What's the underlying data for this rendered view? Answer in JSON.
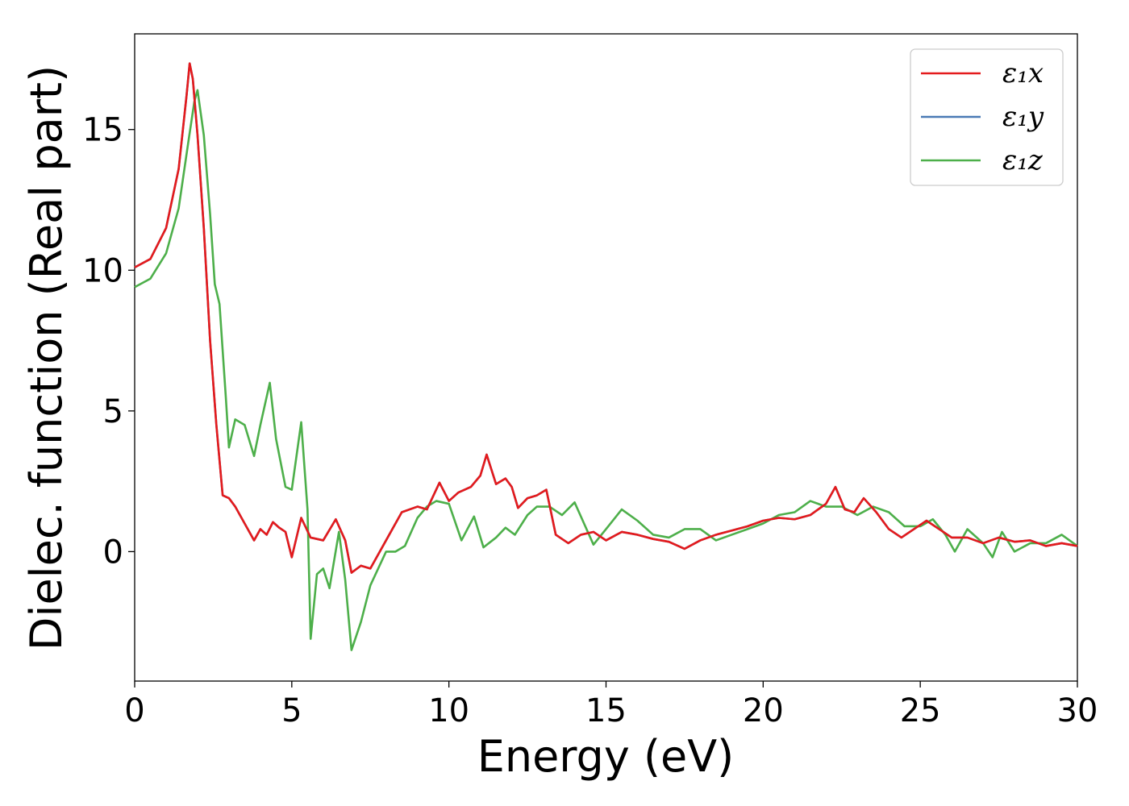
{
  "chart_data": {
    "type": "line",
    "xlabel": "Energy (eV)",
    "ylabel": "Dielec. function (Real part)",
    "xlim": [
      0,
      30
    ],
    "ylim": [
      -4.6,
      18.4
    ],
    "xticks": [
      "0",
      "5",
      "10",
      "15",
      "20",
      "25",
      "30"
    ],
    "yticks": [
      "0",
      "5",
      "10",
      "15"
    ],
    "grid": false,
    "legend_position": "top-right",
    "series": [
      {
        "name": "ε₁x",
        "color": "#e41a1c",
        "points": [
          [
            0,
            10.1
          ],
          [
            0.5,
            10.4
          ],
          [
            1.0,
            11.5
          ],
          [
            1.4,
            13.6
          ],
          [
            1.65,
            16.2
          ],
          [
            1.75,
            17.35
          ],
          [
            1.85,
            16.8
          ],
          [
            2.0,
            14.8
          ],
          [
            2.2,
            11.5
          ],
          [
            2.4,
            7.5
          ],
          [
            2.6,
            4.5
          ],
          [
            2.8,
            2.0
          ],
          [
            3.0,
            1.9
          ],
          [
            3.2,
            1.6
          ],
          [
            3.5,
            1.0
          ],
          [
            3.8,
            0.4
          ],
          [
            4.0,
            0.8
          ],
          [
            4.2,
            0.6
          ],
          [
            4.4,
            1.05
          ],
          [
            4.6,
            0.85
          ],
          [
            4.8,
            0.7
          ],
          [
            5.0,
            -0.2
          ],
          [
            5.3,
            1.2
          ],
          [
            5.6,
            0.5
          ],
          [
            6.0,
            0.4
          ],
          [
            6.4,
            1.15
          ],
          [
            6.7,
            0.4
          ],
          [
            6.9,
            -0.75
          ],
          [
            7.2,
            -0.5
          ],
          [
            7.5,
            -0.6
          ],
          [
            8.0,
            0.4
          ],
          [
            8.5,
            1.4
          ],
          [
            9.0,
            1.6
          ],
          [
            9.3,
            1.5
          ],
          [
            9.7,
            2.45
          ],
          [
            10.0,
            1.8
          ],
          [
            10.3,
            2.1
          ],
          [
            10.7,
            2.3
          ],
          [
            11.0,
            2.7
          ],
          [
            11.2,
            3.45
          ],
          [
            11.5,
            2.4
          ],
          [
            11.8,
            2.6
          ],
          [
            12.0,
            2.3
          ],
          [
            12.2,
            1.55
          ],
          [
            12.5,
            1.9
          ],
          [
            12.8,
            2.0
          ],
          [
            13.1,
            2.2
          ],
          [
            13.4,
            0.6
          ],
          [
            13.8,
            0.3
          ],
          [
            14.2,
            0.6
          ],
          [
            14.6,
            0.7
          ],
          [
            15.0,
            0.4
          ],
          [
            15.5,
            0.7
          ],
          [
            16.0,
            0.6
          ],
          [
            16.5,
            0.45
          ],
          [
            17.0,
            0.35
          ],
          [
            17.5,
            0.1
          ],
          [
            18.0,
            0.4
          ],
          [
            18.5,
            0.6
          ],
          [
            19.0,
            0.75
          ],
          [
            19.5,
            0.9
          ],
          [
            20.0,
            1.1
          ],
          [
            20.5,
            1.2
          ],
          [
            21.0,
            1.15
          ],
          [
            21.5,
            1.3
          ],
          [
            22.0,
            1.7
          ],
          [
            22.3,
            2.3
          ],
          [
            22.6,
            1.5
          ],
          [
            22.9,
            1.4
          ],
          [
            23.2,
            1.9
          ],
          [
            23.6,
            1.4
          ],
          [
            24.0,
            0.8
          ],
          [
            24.4,
            0.5
          ],
          [
            24.8,
            0.8
          ],
          [
            25.2,
            1.1
          ],
          [
            25.6,
            0.8
          ],
          [
            26.0,
            0.5
          ],
          [
            26.5,
            0.5
          ],
          [
            27.0,
            0.3
          ],
          [
            27.5,
            0.5
          ],
          [
            28.0,
            0.35
          ],
          [
            28.5,
            0.4
          ],
          [
            29.0,
            0.2
          ],
          [
            29.5,
            0.3
          ],
          [
            30.0,
            0.2
          ]
        ]
      },
      {
        "name": "ε₁y",
        "color": "#4a7ab5",
        "points": [
          [
            0,
            10.1
          ],
          [
            0.5,
            10.4
          ],
          [
            1.0,
            11.5
          ],
          [
            1.4,
            13.6
          ],
          [
            1.65,
            16.2
          ],
          [
            1.75,
            17.35
          ],
          [
            1.85,
            16.8
          ],
          [
            2.0,
            14.8
          ],
          [
            2.2,
            11.5
          ],
          [
            2.4,
            7.5
          ],
          [
            2.6,
            4.5
          ],
          [
            2.8,
            2.0
          ],
          [
            3.0,
            1.9
          ],
          [
            3.2,
            1.6
          ],
          [
            3.5,
            1.0
          ],
          [
            3.8,
            0.4
          ],
          [
            4.0,
            0.8
          ],
          [
            4.2,
            0.6
          ],
          [
            4.4,
            1.05
          ],
          [
            4.6,
            0.85
          ],
          [
            4.8,
            0.7
          ],
          [
            5.0,
            -0.2
          ],
          [
            5.3,
            1.2
          ],
          [
            5.6,
            0.5
          ],
          [
            6.0,
            0.4
          ],
          [
            6.4,
            1.15
          ],
          [
            6.7,
            0.4
          ],
          [
            6.9,
            -0.75
          ],
          [
            7.2,
            -0.5
          ],
          [
            7.5,
            -0.6
          ],
          [
            8.0,
            0.4
          ],
          [
            8.5,
            1.4
          ],
          [
            9.0,
            1.6
          ],
          [
            9.3,
            1.5
          ],
          [
            9.7,
            2.45
          ],
          [
            10.0,
            1.8
          ],
          [
            10.3,
            2.1
          ],
          [
            10.7,
            2.3
          ],
          [
            11.0,
            2.7
          ],
          [
            11.2,
            3.45
          ],
          [
            11.5,
            2.4
          ],
          [
            11.8,
            2.6
          ],
          [
            12.0,
            2.3
          ],
          [
            12.2,
            1.55
          ],
          [
            12.5,
            1.9
          ],
          [
            12.8,
            2.0
          ],
          [
            13.1,
            2.2
          ],
          [
            13.4,
            0.6
          ],
          [
            13.8,
            0.3
          ],
          [
            14.2,
            0.6
          ],
          [
            14.6,
            0.7
          ],
          [
            15.0,
            0.4
          ],
          [
            15.5,
            0.7
          ],
          [
            16.0,
            0.6
          ],
          [
            16.5,
            0.45
          ],
          [
            17.0,
            0.35
          ],
          [
            17.5,
            0.1
          ],
          [
            18.0,
            0.4
          ],
          [
            18.5,
            0.6
          ],
          [
            19.0,
            0.75
          ],
          [
            19.5,
            0.9
          ],
          [
            20.0,
            1.1
          ],
          [
            20.5,
            1.2
          ],
          [
            21.0,
            1.15
          ],
          [
            21.5,
            1.3
          ],
          [
            22.0,
            1.7
          ],
          [
            22.3,
            2.3
          ],
          [
            22.6,
            1.5
          ],
          [
            22.9,
            1.4
          ],
          [
            23.2,
            1.9
          ],
          [
            23.6,
            1.4
          ],
          [
            24.0,
            0.8
          ],
          [
            24.4,
            0.5
          ],
          [
            24.8,
            0.8
          ],
          [
            25.2,
            1.1
          ],
          [
            25.6,
            0.8
          ],
          [
            26.0,
            0.5
          ],
          [
            26.5,
            0.5
          ],
          [
            27.0,
            0.3
          ],
          [
            27.5,
            0.5
          ],
          [
            28.0,
            0.35
          ],
          [
            28.5,
            0.4
          ],
          [
            29.0,
            0.2
          ],
          [
            29.5,
            0.3
          ],
          [
            30.0,
            0.2
          ]
        ]
      },
      {
        "name": "ε₁z",
        "color": "#4daf4a",
        "points": [
          [
            0,
            9.4
          ],
          [
            0.5,
            9.7
          ],
          [
            1.0,
            10.6
          ],
          [
            1.4,
            12.2
          ],
          [
            1.7,
            14.5
          ],
          [
            1.9,
            16.0
          ],
          [
            2.0,
            16.4
          ],
          [
            2.2,
            14.8
          ],
          [
            2.4,
            12.0
          ],
          [
            2.55,
            9.5
          ],
          [
            2.7,
            8.8
          ],
          [
            2.9,
            5.5
          ],
          [
            3.0,
            3.7
          ],
          [
            3.2,
            4.7
          ],
          [
            3.5,
            4.5
          ],
          [
            3.8,
            3.4
          ],
          [
            4.0,
            4.5
          ],
          [
            4.3,
            6.0
          ],
          [
            4.5,
            4.0
          ],
          [
            4.8,
            2.3
          ],
          [
            5.0,
            2.2
          ],
          [
            5.3,
            4.6
          ],
          [
            5.5,
            1.5
          ],
          [
            5.6,
            -3.1
          ],
          [
            5.8,
            -0.8
          ],
          [
            6.0,
            -0.6
          ],
          [
            6.2,
            -1.3
          ],
          [
            6.5,
            0.7
          ],
          [
            6.7,
            -1.0
          ],
          [
            6.9,
            -3.5
          ],
          [
            7.2,
            -2.5
          ],
          [
            7.5,
            -1.2
          ],
          [
            8.0,
            0.0
          ],
          [
            8.3,
            0.0
          ],
          [
            8.6,
            0.2
          ],
          [
            9.0,
            1.2
          ],
          [
            9.3,
            1.6
          ],
          [
            9.6,
            1.8
          ],
          [
            10.0,
            1.7
          ],
          [
            10.4,
            0.4
          ],
          [
            10.8,
            1.25
          ],
          [
            11.1,
            0.15
          ],
          [
            11.5,
            0.5
          ],
          [
            11.8,
            0.85
          ],
          [
            12.1,
            0.6
          ],
          [
            12.5,
            1.3
          ],
          [
            12.8,
            1.6
          ],
          [
            13.2,
            1.6
          ],
          [
            13.6,
            1.3
          ],
          [
            14.0,
            1.75
          ],
          [
            14.3,
            1.0
          ],
          [
            14.6,
            0.25
          ],
          [
            15.0,
            0.8
          ],
          [
            15.5,
            1.5
          ],
          [
            16.0,
            1.1
          ],
          [
            16.5,
            0.6
          ],
          [
            17.0,
            0.5
          ],
          [
            17.5,
            0.8
          ],
          [
            18.0,
            0.8
          ],
          [
            18.5,
            0.4
          ],
          [
            19.0,
            0.6
          ],
          [
            19.5,
            0.8
          ],
          [
            20.0,
            1.0
          ],
          [
            20.5,
            1.3
          ],
          [
            21.0,
            1.4
          ],
          [
            21.5,
            1.8
          ],
          [
            22.0,
            1.6
          ],
          [
            22.5,
            1.6
          ],
          [
            23.0,
            1.3
          ],
          [
            23.5,
            1.6
          ],
          [
            24.0,
            1.4
          ],
          [
            24.5,
            0.9
          ],
          [
            25.0,
            0.9
          ],
          [
            25.4,
            1.15
          ],
          [
            25.8,
            0.6
          ],
          [
            26.1,
            0.0
          ],
          [
            26.5,
            0.8
          ],
          [
            27.0,
            0.3
          ],
          [
            27.3,
            -0.2
          ],
          [
            27.6,
            0.7
          ],
          [
            28.0,
            0.0
          ],
          [
            28.5,
            0.3
          ],
          [
            29.0,
            0.3
          ],
          [
            29.5,
            0.6
          ],
          [
            30.0,
            0.2
          ]
        ]
      }
    ]
  }
}
